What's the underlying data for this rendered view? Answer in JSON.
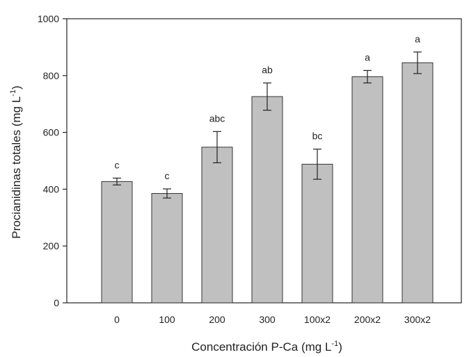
{
  "chart_data": {
    "type": "bar",
    "title": "",
    "xlabel": {
      "text": "Concentración P-Ca (mg L",
      "sup": "-1",
      "close": ")"
    },
    "ylabel": {
      "text": "Procianidinas totales (mg L",
      "sup": "-1",
      "close": ")"
    },
    "ylim": [
      0,
      1000
    ],
    "yticks": [
      0,
      200,
      400,
      600,
      800,
      1000
    ],
    "categories": [
      "0",
      "100",
      "200",
      "300",
      "100x2",
      "200x2",
      "300x2"
    ],
    "values": [
      427,
      385,
      548,
      726,
      488,
      796,
      845
    ],
    "errors": [
      12,
      16,
      55,
      48,
      53,
      22,
      38
    ],
    "significance": [
      "c",
      "c",
      "abc",
      "ab",
      "bc",
      "a",
      "a"
    ],
    "bar_color": "#c0c0c0",
    "grid": false,
    "legend": "none"
  }
}
